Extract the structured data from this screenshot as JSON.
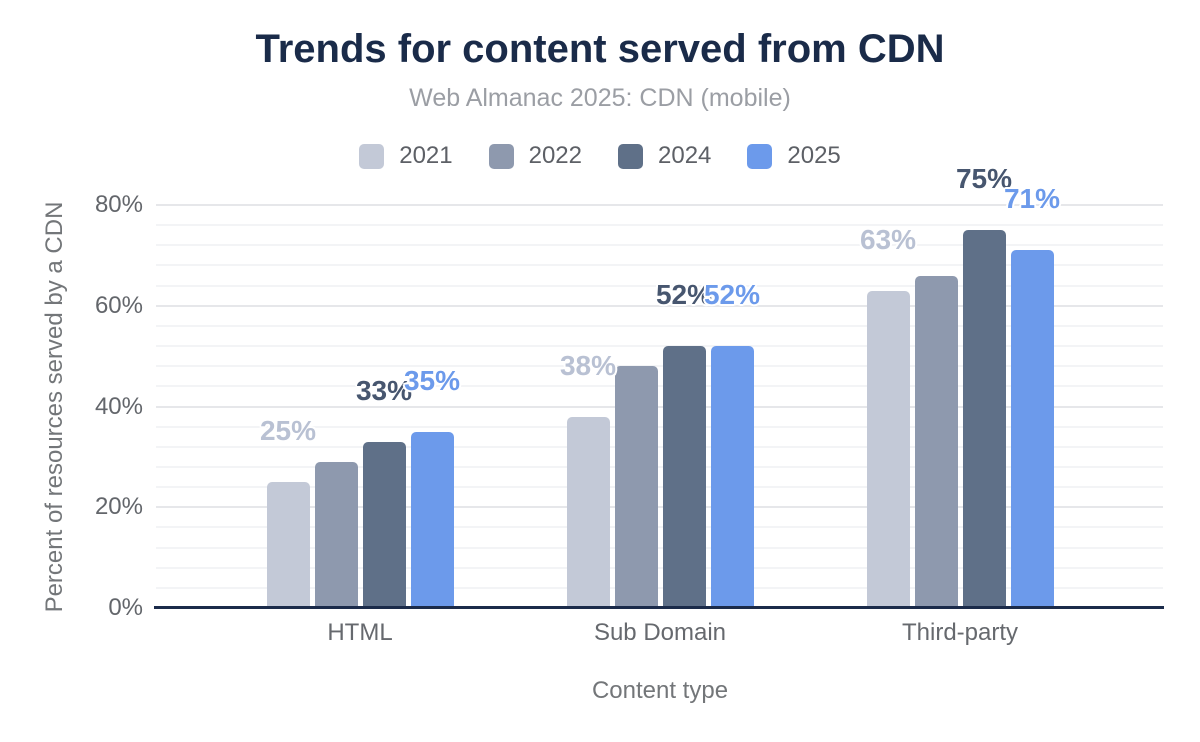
{
  "chart_data": {
    "type": "bar",
    "title": "Trends for content served from CDN",
    "subtitle": "Web Almanac 2025: CDN (mobile)",
    "categories": [
      "HTML",
      "Sub Domain",
      "Third-party"
    ],
    "series": [
      {
        "name": "2021",
        "color": "#c3c9d7",
        "label_color": "#b9c1d3",
        "values": [
          25,
          38,
          63
        ],
        "data_labels": [
          "25%",
          "38%",
          "63%"
        ],
        "labels_visible": true
      },
      {
        "name": "2022",
        "color": "#8e99ae",
        "label_color": "#8e99ae",
        "values": [
          29,
          48,
          66
        ],
        "data_labels": [],
        "labels_visible": false
      },
      {
        "name": "2024",
        "color": "#5f7088",
        "label_color": "#47566f",
        "values": [
          33,
          52,
          75
        ],
        "data_labels": [
          "33%",
          "52%",
          "75%"
        ],
        "labels_visible": true
      },
      {
        "name": "2025",
        "color": "#6c9aeb",
        "label_color": "#6c9aeb",
        "values": [
          35,
          52,
          71
        ],
        "data_labels": [
          "35%",
          "52%",
          "71%"
        ],
        "labels_visible": true
      }
    ],
    "xlabel": "Content type",
    "ylabel": "Percent of resources served by a CDN",
    "ylim": [
      0,
      80
    ],
    "ytick_interval": 20,
    "minor_tick_interval": 4,
    "ytick_suffix": "%",
    "legend_position": "top",
    "grid": true
  },
  "colors": {
    "title": "#1a2b49",
    "subtitle": "#9b9ea4",
    "axis_line": "#1b2b4a",
    "tick_label": "#63666b",
    "axis_title": "#737679",
    "grid_major": "#e6e7ea",
    "grid_minor": "#f3f4f6",
    "background": "#ffffff"
  }
}
